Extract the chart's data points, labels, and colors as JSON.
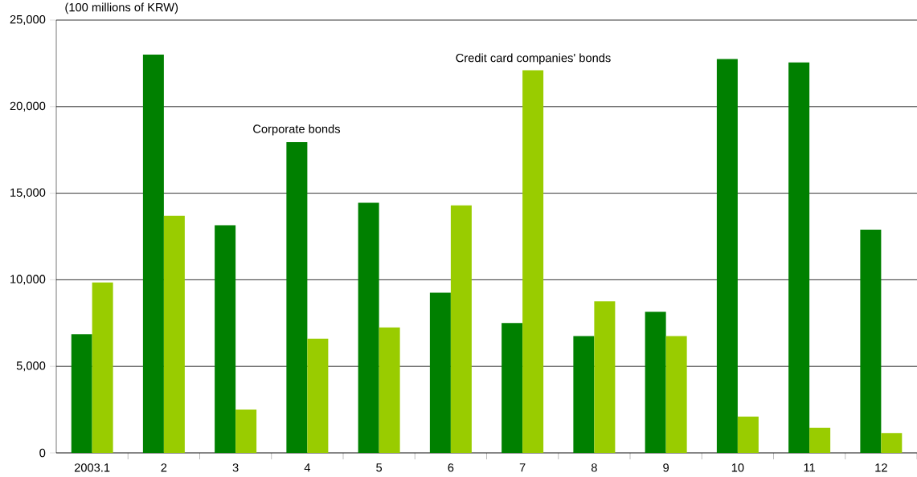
{
  "chart_data": {
    "type": "bar",
    "ylabel": "(100 millions of KRW)",
    "categories": [
      "2003.1",
      "2",
      "3",
      "4",
      "5",
      "6",
      "7",
      "8",
      "9",
      "10",
      "11",
      "12"
    ],
    "series": [
      {
        "name": "Corporate bonds",
        "color": "#008000",
        "values": [
          6850,
          23000,
          13150,
          17950,
          14450,
          9250,
          7500,
          6750,
          8150,
          22750,
          22550,
          12900
        ]
      },
      {
        "name": "Credit card companies' bonds",
        "color": "#99cc00",
        "values": [
          9850,
          13700,
          2500,
          6600,
          7250,
          14300,
          22100,
          8750,
          6750,
          2100,
          1450,
          1150
        ]
      }
    ],
    "ylim": [
      0,
      25000
    ],
    "yticks": [
      0,
      {
        "value": 5000,
        "label": "5,000"
      },
      {
        "value": 10000,
        "label": "10,000"
      },
      {
        "value": 15000,
        "label": "15,000"
      },
      {
        "value": 20000,
        "label": "20,000"
      },
      {
        "value": 25000,
        "label": "25,000"
      }
    ],
    "grid": "y",
    "legend": false
  }
}
